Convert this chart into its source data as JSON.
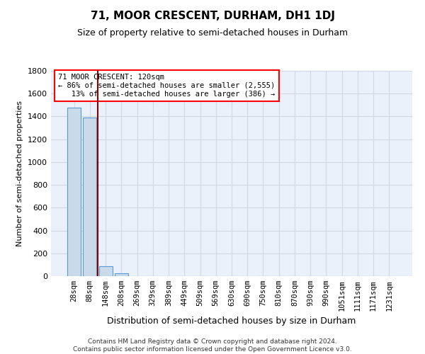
{
  "title": "71, MOOR CRESCENT, DURHAM, DH1 1DJ",
  "subtitle": "Size of property relative to semi-detached houses in Durham",
  "xlabel": "Distribution of semi-detached houses by size in Durham",
  "ylabel": "Number of semi-detached properties",
  "footnote": "Contains HM Land Registry data © Crown copyright and database right 2024.\nContains public sector information licensed under the Open Government Licence v3.0.",
  "bar_labels": [
    "28sqm",
    "88sqm",
    "148sqm",
    "208sqm",
    "269sqm",
    "329sqm",
    "389sqm",
    "449sqm",
    "509sqm",
    "569sqm",
    "630sqm",
    "690sqm",
    "750sqm",
    "810sqm",
    "870sqm",
    "930sqm",
    "990sqm",
    "1051sqm",
    "1111sqm",
    "1171sqm",
    "1231sqm"
  ],
  "bar_values": [
    1480,
    1390,
    90,
    25,
    0,
    0,
    0,
    0,
    0,
    0,
    0,
    0,
    0,
    0,
    0,
    0,
    0,
    0,
    0,
    0,
    0
  ],
  "bar_color": "#c9daea",
  "bar_edgecolor": "#5b9bd5",
  "property_line_color": "#8b0000",
  "property_line_x": 1.5,
  "ylim": [
    0,
    1800
  ],
  "yticks": [
    0,
    200,
    400,
    600,
    800,
    1000,
    1200,
    1400,
    1600,
    1800
  ],
  "annotation_text": "71 MOOR CRESCENT: 120sqm\n← 86% of semi-detached houses are smaller (2,555)\n   13% of semi-detached houses are larger (386) →",
  "grid_color": "#d0d8e4",
  "background_color": "#eaf1fb",
  "title_fontsize": 11,
  "subtitle_fontsize": 9,
  "ylabel_fontsize": 8,
  "xlabel_fontsize": 9,
  "tick_fontsize": 8,
  "xtick_fontsize": 7.5,
  "annot_fontsize": 7.5,
  "footnote_fontsize": 6.5
}
